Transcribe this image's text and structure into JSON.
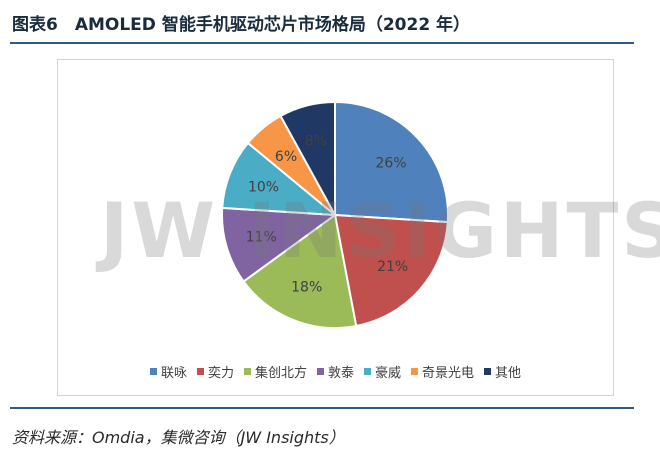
{
  "title": "图表6　AMOLED 智能手机驱动芯片市场格局（2022 年）",
  "watermark": "JW INSIGHTS",
  "source": "资料来源：Omdia，集微咨询（JW Insights）",
  "chart_data": {
    "type": "pie",
    "categories": [
      "联咏",
      "奕力",
      "集创北方",
      "敦泰",
      "豪威",
      "奇景光电",
      "其他"
    ],
    "values": [
      26,
      21,
      18,
      11,
      10,
      6,
      8
    ],
    "labels": [
      "26%",
      "21%",
      "18%",
      "11%",
      "10%",
      "6%",
      "8%"
    ],
    "colors": [
      "#4f81bd",
      "#c0504d",
      "#9bbb59",
      "#8064a2",
      "#4bacc6",
      "#f79646",
      "#1f3864"
    ],
    "legend_position": "bottom",
    "start": "12 o'clock",
    "direction": "clockwise"
  }
}
